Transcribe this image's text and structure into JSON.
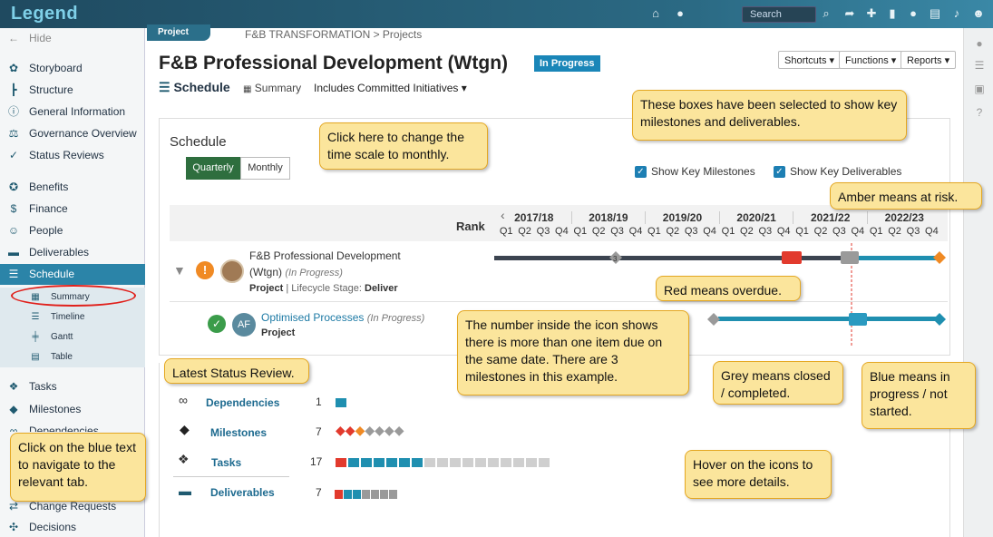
{
  "app": {
    "logo": "Legend",
    "search_placeholder": "Search"
  },
  "sidebar": {
    "hide": "Hide",
    "items": [
      {
        "label": "Storyboard"
      },
      {
        "label": "Structure"
      },
      {
        "label": "General Information"
      },
      {
        "label": "Governance Overview"
      },
      {
        "label": "Status Reviews"
      },
      {
        "label": "Benefits"
      },
      {
        "label": "Finance"
      },
      {
        "label": "People"
      },
      {
        "label": "Deliverables"
      },
      {
        "label": "Schedule"
      }
    ],
    "sub_items": [
      {
        "label": "Summary"
      },
      {
        "label": "Timeline"
      },
      {
        "label": "Gantt"
      },
      {
        "label": "Table"
      }
    ],
    "lower_items": [
      {
        "label": "Tasks"
      },
      {
        "label": "Milestones"
      },
      {
        "label": "Dependencies"
      },
      {
        "label": "Change Requests"
      },
      {
        "label": "Decisions"
      }
    ]
  },
  "header": {
    "tab": "Project",
    "breadcrumb": "F&B TRANSFORMATION > Projects",
    "title": "F&B Professional Development (Wtgn)",
    "status": "In Progress",
    "buttons": [
      "Shortcuts",
      "Functions",
      "Reports"
    ]
  },
  "subnav": {
    "schedule": "Schedule",
    "summary": "Summary",
    "filter": "Includes Committed Initiatives"
  },
  "schedule": {
    "heading": "Schedule",
    "quarterly": "Quarterly",
    "monthly": "Monthly",
    "show_milestones": "Show Key Milestones",
    "show_deliverables": "Show Key Deliverables",
    "rank": "Rank",
    "years": [
      "2017/18",
      "2018/19",
      "2019/20",
      "2020/21",
      "2021/22",
      "2022/23"
    ],
    "quarters": [
      "Q1",
      "Q2",
      "Q3",
      "Q4"
    ],
    "row1": {
      "name": "F&B Professional Development",
      "name2": "(Wtgn)",
      "status": "(In Progress)",
      "type": "Project",
      "stage_label": "| Lifecycle Stage:",
      "stage": "Deliver",
      "milestone_count": "3"
    },
    "row2": {
      "initials": "AF",
      "name": "Optimised Processes",
      "status": "(In Progress)",
      "type": "Project"
    }
  },
  "summary": {
    "rows": [
      {
        "label": "Dependencies",
        "count": "1"
      },
      {
        "label": "Milestones",
        "count": "7"
      },
      {
        "label": "Tasks",
        "count": "17"
      },
      {
        "label": "Deliverables",
        "count": "7"
      }
    ]
  },
  "notes": {
    "timescale": "Click here to change the time scale to monthly.",
    "boxes": "These boxes have been selected to show key milestones and deliverables.",
    "amber": "Amber means at risk.",
    "red": "Red means overdue.",
    "number": "The number inside the icon shows there is more than one item due on the same date.  There are 3 milestones in this example.",
    "grey": "Grey means closed / completed.",
    "blue": "Blue means in progress / not started.",
    "latest": "Latest Status Review.",
    "click": "Click on the blue text to navigate to the relevant tab.",
    "hover": "Hover on the icons to see more details."
  },
  "colors": {
    "accent": "#2b84a8",
    "amber": "#f08a24",
    "red": "#e23a2d",
    "grey": "#9a9a9a",
    "blue": "#1f8fb0",
    "note_bg": "#fbe59c"
  }
}
